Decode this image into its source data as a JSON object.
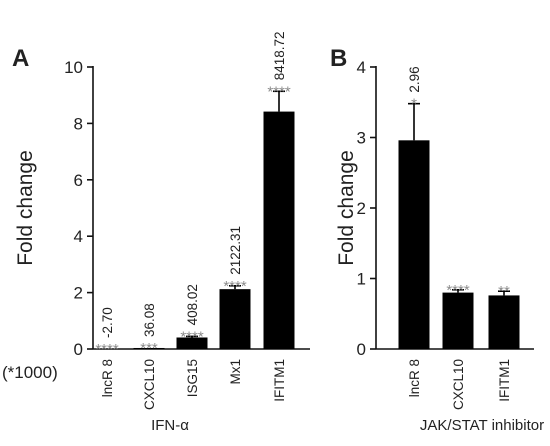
{
  "chart_data": [
    {
      "panel": "A",
      "type": "bar",
      "categories": [
        "lncR 8",
        "CXCL10",
        "ISG15",
        "Mx1",
        "IFITM1"
      ],
      "values": [
        0.0,
        0.036,
        0.408,
        2.122,
        8.419
      ],
      "errors": [
        0.0,
        0.0,
        0.04,
        0.12,
        0.72
      ],
      "value_labels": [
        "-2.70",
        "36.08",
        "408.02",
        "2122.31",
        "8418.72"
      ],
      "significance": [
        "****",
        "***",
        "****",
        "****",
        "****"
      ],
      "ylabel": "Fold change",
      "xlabel": "IFN-α",
      "scale_note": "(*1000)",
      "yticks": [
        "0",
        "2",
        "4",
        "6",
        "8",
        "10"
      ],
      "ylim": [
        0,
        10
      ]
    },
    {
      "panel": "B",
      "type": "bar",
      "categories": [
        "lncR 8",
        "CXCL10",
        "IFITM1"
      ],
      "values": [
        2.96,
        0.8,
        0.76
      ],
      "errors": [
        0.52,
        0.04,
        0.06
      ],
      "value_labels": [
        "2.96",
        "",
        ""
      ],
      "significance": [
        "*",
        "****",
        "**"
      ],
      "ylabel": "Fold change",
      "xlabel": "JAK/STAT inhibitor",
      "yticks": [
        "0",
        "1",
        "2",
        "3",
        "4"
      ],
      "ylim": [
        0,
        4
      ]
    }
  ]
}
